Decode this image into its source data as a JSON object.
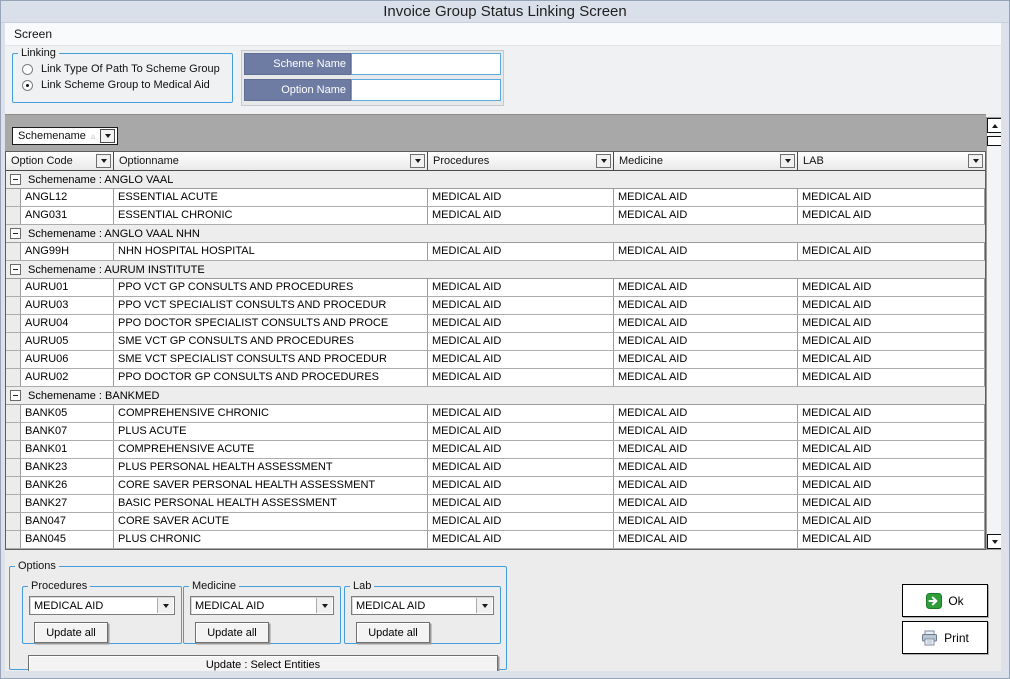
{
  "window": {
    "title": "Invoice Group Status Linking Screen"
  },
  "menu": {
    "items": [
      {
        "label": "Screen"
      }
    ]
  },
  "linking": {
    "label": "Linking",
    "radios": [
      {
        "label": "Link Type Of Path To Scheme Group",
        "selected": false
      },
      {
        "label": "Link Scheme Group to Medical Aid",
        "selected": true
      }
    ]
  },
  "name_filters": [
    {
      "label": "Scheme Name",
      "value": ""
    },
    {
      "label": "Option Name",
      "value": ""
    }
  ],
  "grid": {
    "group_by_button": {
      "field": "Schemename",
      "sort": "ascending",
      "sort_icon": "ascending-triangle",
      "dropdown_icon": "down-arrow"
    },
    "columns": [
      {
        "label": "Option Code"
      },
      {
        "label": "Optionname"
      },
      {
        "label": "Procedures"
      },
      {
        "label": "Medicine"
      },
      {
        "label": "LAB"
      }
    ],
    "rows": [
      {
        "type": "group",
        "label": "Schemename : ANGLO VAAL",
        "expanded": true
      },
      {
        "type": "data",
        "cells": [
          "ANGL12",
          "ESSENTIAL ACUTE",
          "MEDICAL AID",
          "MEDICAL AID",
          "MEDICAL AID"
        ]
      },
      {
        "type": "data",
        "cells": [
          "ANG031",
          "ESSENTIAL CHRONIC",
          "MEDICAL AID",
          "MEDICAL AID",
          "MEDICAL AID"
        ]
      },
      {
        "type": "group",
        "label": "Schemename : ANGLO VAAL NHN",
        "expanded": true
      },
      {
        "type": "data",
        "cells": [
          "ANG99H",
          "NHN HOSPITAL HOSPITAL",
          "MEDICAL AID",
          "MEDICAL AID",
          "MEDICAL AID"
        ]
      },
      {
        "type": "group",
        "label": "Schemename : AURUM INSTITUTE",
        "expanded": true
      },
      {
        "type": "data",
        "cells": [
          "AURU01",
          "PPO VCT GP CONSULTS AND PROCEDURES",
          "MEDICAL AID",
          "MEDICAL AID",
          "MEDICAL AID"
        ]
      },
      {
        "type": "data",
        "cells": [
          "AURU03",
          "PPO VCT SPECIALIST CONSULTS AND PROCEDUR",
          "MEDICAL AID",
          "MEDICAL AID",
          "MEDICAL AID"
        ]
      },
      {
        "type": "data",
        "cells": [
          "AURU04",
          "PPO DOCTOR SPECIALIST CONSULTS AND PROCE",
          "MEDICAL AID",
          "MEDICAL AID",
          "MEDICAL AID"
        ]
      },
      {
        "type": "data",
        "cells": [
          "AURU05",
          "SME VCT GP CONSULTS AND PROCEDURES",
          "MEDICAL AID",
          "MEDICAL AID",
          "MEDICAL AID"
        ]
      },
      {
        "type": "data",
        "cells": [
          "AURU06",
          "SME VCT SPECIALIST CONSULTS AND PROCEDUR",
          "MEDICAL AID",
          "MEDICAL AID",
          "MEDICAL AID"
        ]
      },
      {
        "type": "data",
        "cells": [
          "AURU02",
          "PPO DOCTOR GP CONSULTS AND PROCEDURES",
          "MEDICAL AID",
          "MEDICAL AID",
          "MEDICAL AID"
        ]
      },
      {
        "type": "group",
        "label": "Schemename : BANKMED",
        "expanded": true
      },
      {
        "type": "data",
        "cells": [
          "BANK05",
          "COMPREHENSIVE CHRONIC",
          "MEDICAL AID",
          "MEDICAL AID",
          "MEDICAL AID"
        ]
      },
      {
        "type": "data",
        "cells": [
          "BANK07",
          "PLUS ACUTE",
          "MEDICAL AID",
          "MEDICAL AID",
          "MEDICAL AID"
        ]
      },
      {
        "type": "data",
        "cells": [
          "BANK01",
          "COMPREHENSIVE ACUTE",
          "MEDICAL AID",
          "MEDICAL AID",
          "MEDICAL AID"
        ]
      },
      {
        "type": "data",
        "cells": [
          "BANK23",
          "PLUS PERSONAL HEALTH ASSESSMENT",
          "MEDICAL AID",
          "MEDICAL AID",
          "MEDICAL AID"
        ]
      },
      {
        "type": "data",
        "cells": [
          "BANK26",
          "CORE SAVER PERSONAL HEALTH ASSESSMENT",
          "MEDICAL AID",
          "MEDICAL AID",
          "MEDICAL AID"
        ]
      },
      {
        "type": "data",
        "cells": [
          "BANK27",
          "BASIC PERSONAL HEALTH ASSESSMENT",
          "MEDICAL AID",
          "MEDICAL AID",
          "MEDICAL AID"
        ]
      },
      {
        "type": "data",
        "cells": [
          "BAN047",
          "CORE SAVER ACUTE",
          "MEDICAL AID",
          "MEDICAL AID",
          "MEDICAL AID"
        ]
      },
      {
        "type": "data",
        "cells": [
          "BAN045",
          "PLUS CHRONIC",
          "MEDICAL AID",
          "MEDICAL AID",
          "MEDICAL AID"
        ]
      }
    ]
  },
  "options_panel": {
    "label": "Options",
    "groups": [
      {
        "label": "Procedures",
        "selected_value": "MEDICAL AID",
        "button_label": "Update all"
      },
      {
        "label": "Medicine",
        "selected_value": "MEDICAL AID",
        "button_label": "Update all"
      },
      {
        "label": "Lab",
        "selected_value": "MEDICAL AID",
        "button_label": "Update all"
      }
    ],
    "update_selected_button": "Update : Select Entities"
  },
  "action_buttons": {
    "ok": "Ok",
    "print": "Print"
  },
  "icons": {
    "ok": "green-right-arrow-icon",
    "print": "printer-icon",
    "scroll_up": "triangle-up-icon",
    "scroll_down": "triangle-down-icon"
  },
  "colors": {
    "accent_blue_border": "#459ddd",
    "field_label_bg": "#6e7ca4",
    "group_band_bg": "#a8a8a8",
    "titlebar_bg": "#d9e0ea",
    "group_row_bg": "#ededee",
    "ok_icon_green": "#2f9e39"
  }
}
